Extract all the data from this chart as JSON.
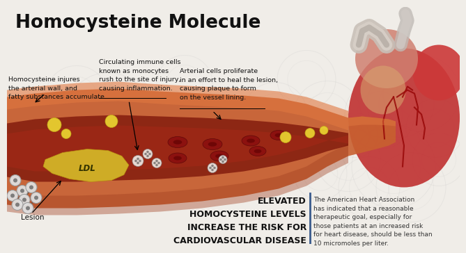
{
  "title": "Homocysteine Molecule",
  "bg_color": "#f0ede8",
  "title_color": "#111111",
  "title_fontsize": 19,
  "annotation1": "Homocysteine injures\nthe arterial wall, and\nfatty substances accumulate.",
  "annotation2": "Circulating immune cells\nknown as monocytes\nrush to the site of injury,\ncausing inflammation.",
  "annotation3": "Arterial cells proliferate\nin an effort to heal the lesion,\ncausing plaque to form\non the vessel lining.",
  "lesion_label": "Lesion",
  "ldl_label": "LDL",
  "elevated_text": "ELEVATED\nHOMOCYSTEINE LEVELS\nINCREASE THE RISK FOR\nCARDIOVASCULAR DISEASE",
  "aha_text": "The American Heart Association\nhas indicated that a reasonable\ntherapeutic goal, especially for\nthose patients at an increased risk\nfor heart disease, should be less than\n10 micromoles per liter.",
  "divider_color": "#3a5a8c",
  "circle_color": "#bbbbbb",
  "artery_outer": "#c8663a",
  "artery_highlight": "#e07840",
  "artery_shadow": "#a04020",
  "lumen_color": "#7a1208",
  "plaque_color": "#d4b828",
  "blood_cell_color": "#8b1010",
  "annotation_color": "#111111",
  "ann_line_color": "#000000"
}
